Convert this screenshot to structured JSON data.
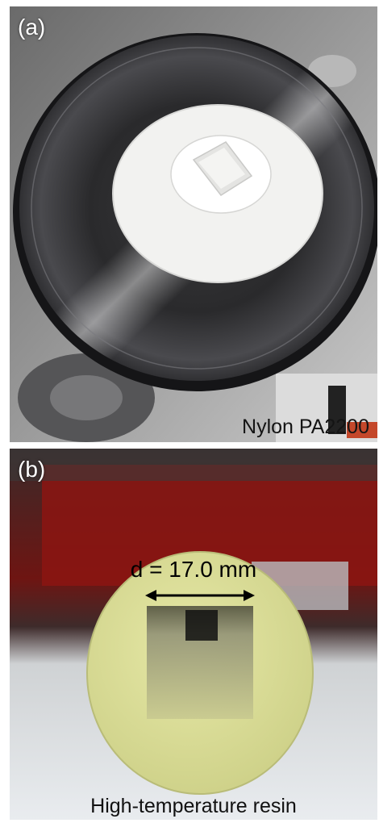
{
  "panels": [
    {
      "label": "(a)",
      "caption": "Nylon PA2200"
    },
    {
      "label": "(b)",
      "caption": "High-temperature resin",
      "annotation": "d = 17.0 mm"
    }
  ],
  "colors": {
    "steel_dark": "#2a2a2c",
    "steel_light": "#bfbfc2",
    "nylon_white": "#f2f2f0",
    "resin_yellow": "#d9dc95",
    "background_red": "#8c1512",
    "table_white": "#e9ecef"
  }
}
